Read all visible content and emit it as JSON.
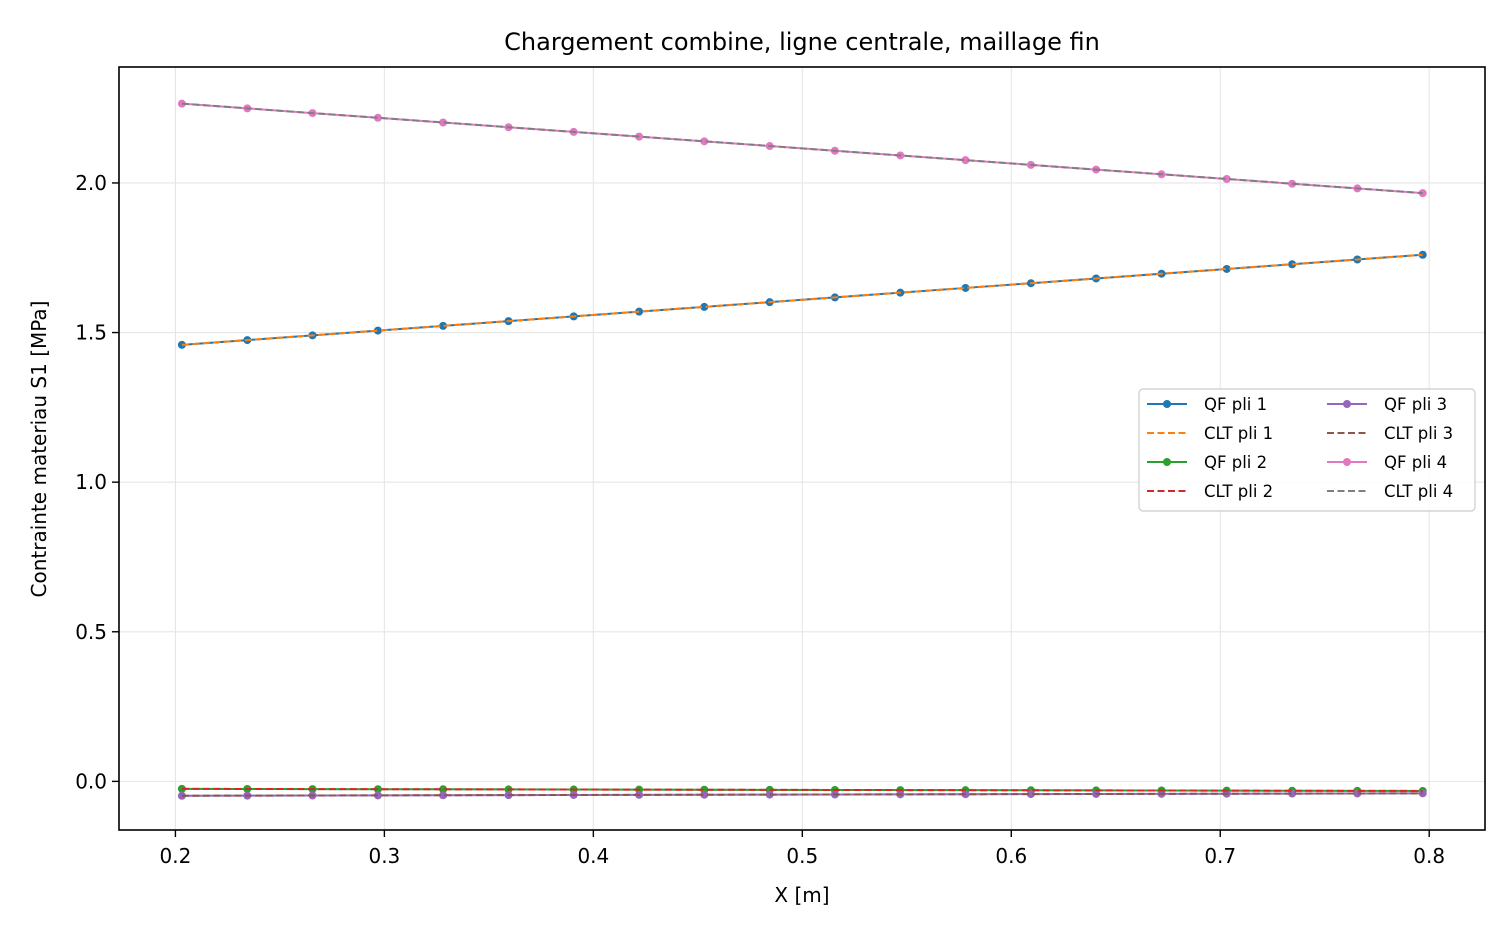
{
  "chart_data": {
    "type": "line",
    "title": "Chargement combine, ligne centrale, maillage fin",
    "xlabel": "X [m]",
    "ylabel": "Contrainte materiau S1 [MPa]",
    "xlim": [
      0.173,
      0.8267
    ],
    "ylim": [
      -0.1625,
      2.3875
    ],
    "xticks": [
      0.2,
      0.3,
      0.4,
      0.5,
      0.6,
      0.7,
      0.8
    ],
    "xtick_labels": [
      "0.2",
      "0.3",
      "0.4",
      "0.5",
      "0.6",
      "0.7",
      "0.8"
    ],
    "yticks": [
      0.0,
      0.5,
      1.0,
      1.5,
      2.0
    ],
    "ytick_labels": [
      "0.0",
      "0.5",
      "1.0",
      "1.5",
      "2.0"
    ],
    "grid": true,
    "legend_position": "center-right",
    "legend_columns": 2,
    "x": [
      0.2031,
      0.2344,
      0.2656,
      0.2969,
      0.3281,
      0.3594,
      0.3906,
      0.4219,
      0.4531,
      0.4844,
      0.5156,
      0.5469,
      0.5781,
      0.6094,
      0.6406,
      0.6719,
      0.7031,
      0.7344,
      0.7656,
      0.7969
    ],
    "series": [
      {
        "name": "QF pli 1",
        "style": "solid-marker",
        "color": "#1f77b4",
        "y_start": 1.459,
        "y_end": 1.76
      },
      {
        "name": "CLT pli 1",
        "style": "dashed",
        "color": "#ff7f0e",
        "y_start": 1.459,
        "y_end": 1.76
      },
      {
        "name": "QF pli 2",
        "style": "solid-marker",
        "color": "#2ca02c",
        "y_start": -0.025,
        "y_end": -0.032
      },
      {
        "name": "CLT pli 2",
        "style": "dashed",
        "color": "#d62728",
        "y_start": -0.025,
        "y_end": -0.032
      },
      {
        "name": "QF pli 3",
        "style": "solid-marker",
        "color": "#9467bd",
        "y_start": -0.048,
        "y_end": -0.04
      },
      {
        "name": "CLT pli 3",
        "style": "dashed",
        "color": "#8c564b",
        "y_start": -0.048,
        "y_end": -0.04
      },
      {
        "name": "QF pli 4",
        "style": "solid-marker",
        "color": "#e377c2",
        "y_start": 2.265,
        "y_end": 1.966
      },
      {
        "name": "CLT pli 4",
        "style": "dashed",
        "color": "#7f7f7f",
        "y_start": 2.265,
        "y_end": 1.966
      }
    ]
  }
}
